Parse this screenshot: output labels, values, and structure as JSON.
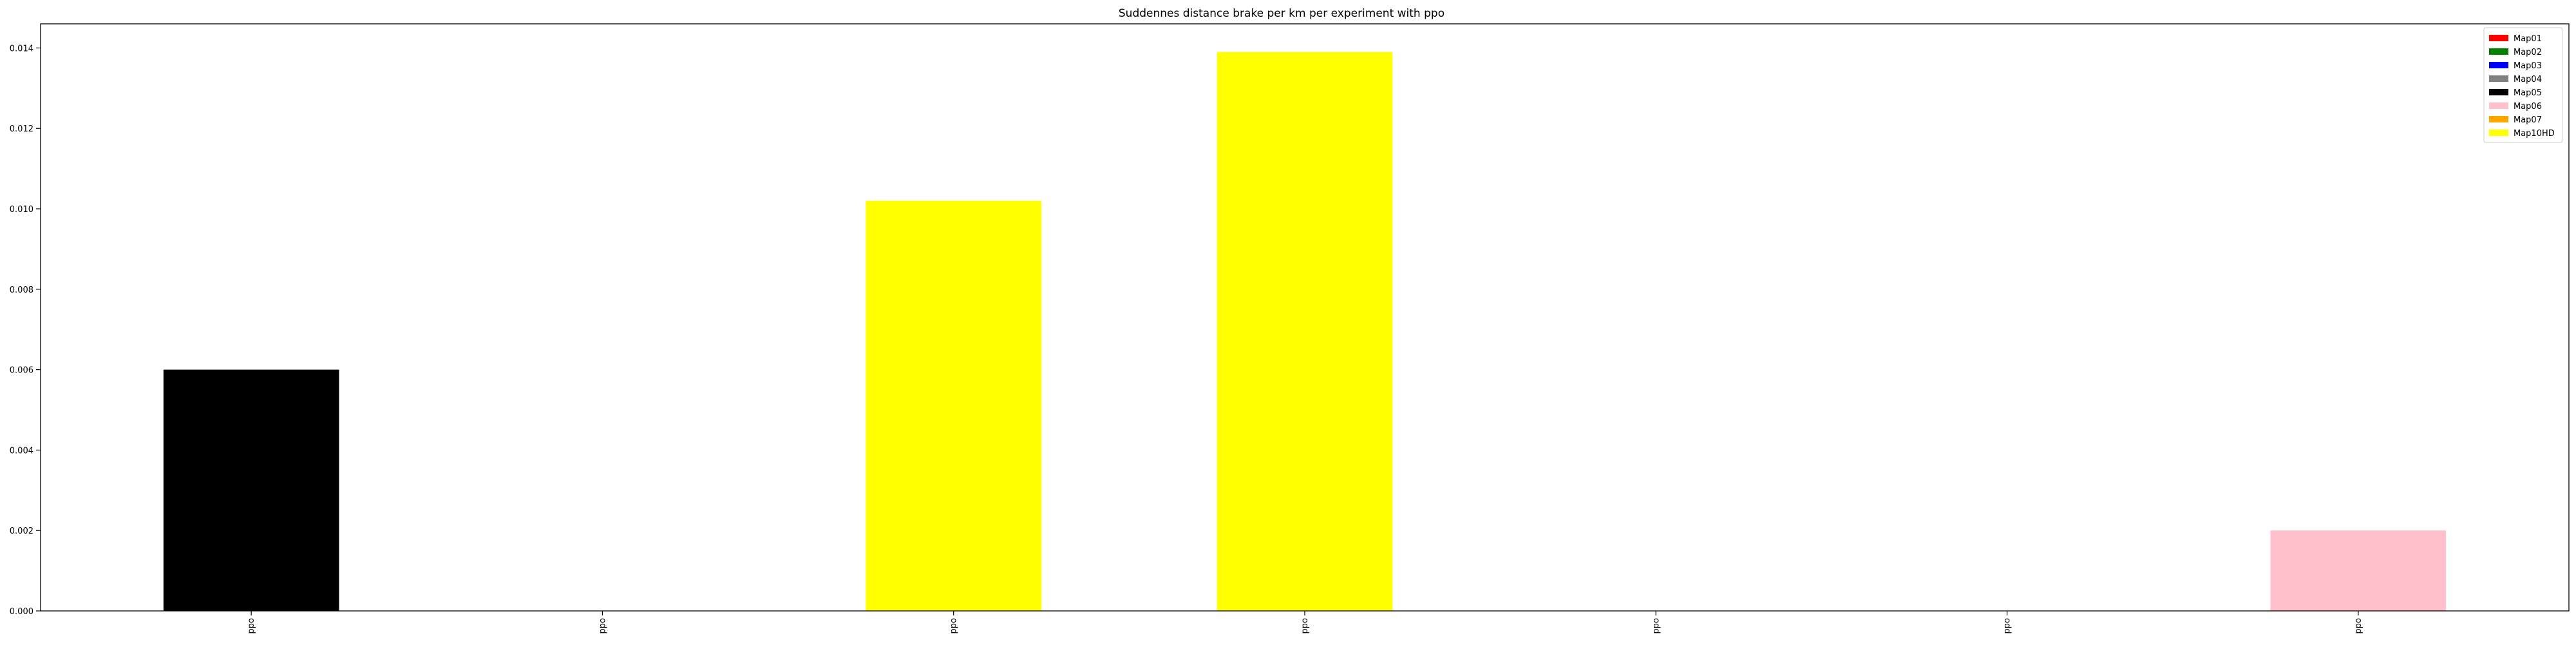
{
  "chart_data": {
    "type": "bar",
    "title": "Suddennes distance brake per km per experiment with ppo",
    "xlabel": "",
    "ylabel": "",
    "ylim": [
      0,
      0.0146
    ],
    "yticks": [
      "0.000",
      "0.002",
      "0.004",
      "0.006",
      "0.008",
      "0.010",
      "0.012",
      "0.014"
    ],
    "categories": [
      "ppo",
      "ppo",
      "ppo",
      "ppo",
      "ppo",
      "ppo",
      "ppo"
    ],
    "bars": [
      {
        "value": 0.006,
        "color": "#000000",
        "series": "Map05"
      },
      {
        "value": 0.0,
        "color": "#ffffff",
        "series": ""
      },
      {
        "value": 0.0102,
        "color": "#ffff00",
        "series": "Map10HD"
      },
      {
        "value": 0.0139,
        "color": "#ffff00",
        "series": "Map10HD"
      },
      {
        "value": 0.0,
        "color": "#ffffff",
        "series": ""
      },
      {
        "value": 0.0,
        "color": "#ffffff",
        "series": ""
      },
      {
        "value": 0.002,
        "color": "#ffc0cb",
        "series": "Map06"
      }
    ],
    "legend": {
      "position": "top-right",
      "entries": [
        {
          "label": "Map01",
          "color": "#ff0000"
        },
        {
          "label": "Map02",
          "color": "#008000"
        },
        {
          "label": "Map03",
          "color": "#0000ff"
        },
        {
          "label": "Map04",
          "color": "#808080"
        },
        {
          "label": "Map05",
          "color": "#000000"
        },
        {
          "label": "Map06",
          "color": "#ffc0cb"
        },
        {
          "label": "Map07",
          "color": "#ffa500"
        },
        {
          "label": "Map10HD",
          "color": "#ffff00"
        }
      ]
    },
    "grid": false
  }
}
